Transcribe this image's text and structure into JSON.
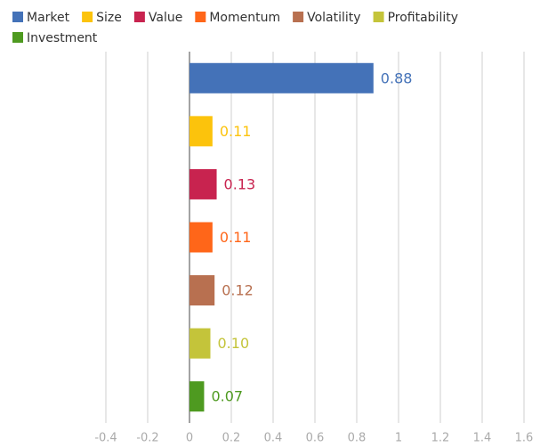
{
  "chart_data": {
    "type": "barh",
    "series": [
      {
        "name": "Market",
        "color": "#4472b8",
        "values": [
          0.88
        ],
        "value_labels": [
          "0.88"
        ]
      },
      {
        "name": "Size",
        "color": "#fcc30c",
        "values": [
          0.11
        ],
        "value_labels": [
          "0.11"
        ]
      },
      {
        "name": "Value",
        "color": "#c8234f",
        "values": [
          0.13
        ],
        "value_labels": [
          "0.13"
        ]
      },
      {
        "name": "Momentum",
        "color": "#ff6619",
        "values": [
          0.11
        ],
        "value_labels": [
          "0.11"
        ]
      },
      {
        "name": "Volatility",
        "color": "#b87050",
        "values": [
          0.12
        ],
        "value_labels": [
          "0.12"
        ]
      },
      {
        "name": "Profitability",
        "color": "#c4c43a",
        "values": [
          0.1
        ],
        "value_labels": [
          "0.10"
        ]
      },
      {
        "name": "Investment",
        "color": "#4e9a20",
        "values": [
          0.07
        ],
        "value_labels": [
          "0.07"
        ]
      }
    ],
    "xlim": [
      -0.4,
      1.6
    ],
    "xticks": [
      -0.4,
      -0.2,
      0,
      0.2,
      0.4,
      0.6,
      0.8,
      1,
      1.2,
      1.4,
      1.6
    ],
    "grid": true,
    "legend": "top"
  }
}
